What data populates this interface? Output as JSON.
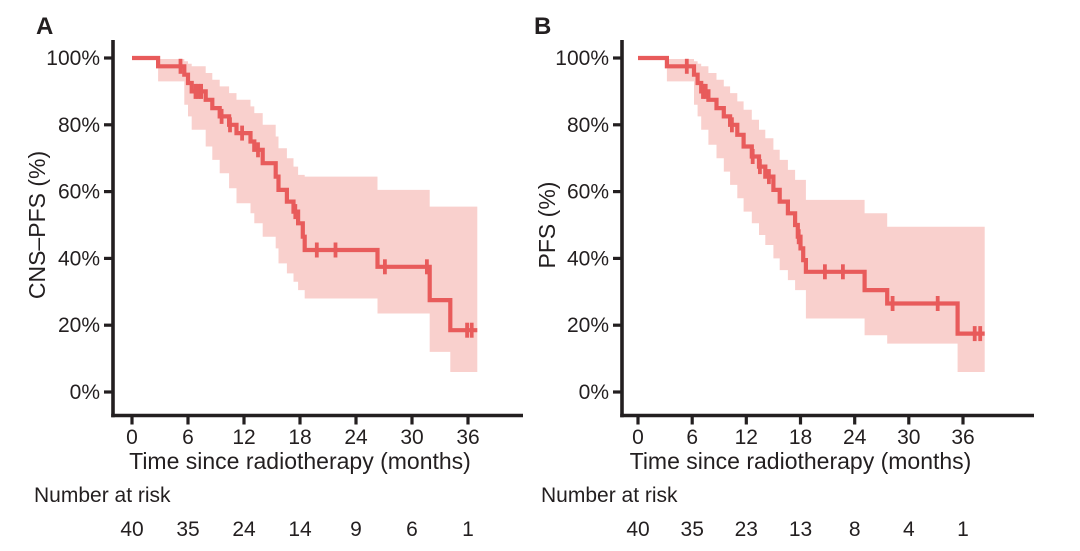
{
  "figure": {
    "background": "#ffffff",
    "colors": {
      "curve": "#e85b5b",
      "band": "#f9d0cd",
      "axis": "#231f20",
      "text": "#231f20"
    },
    "x_axis_label": "Time since radiotherapy (months)",
    "number_at_risk_label": "Number at risk",
    "x_ticks": [
      0,
      6,
      12,
      18,
      24,
      30,
      36
    ],
    "y_ticks": [
      {
        "value": 100,
        "label": "100%"
      },
      {
        "value": 80,
        "label": "80%"
      },
      {
        "value": 60,
        "label": "60%"
      },
      {
        "value": 40,
        "label": "40%"
      },
      {
        "value": 20,
        "label": "20%"
      },
      {
        "value": 0,
        "label": "0%"
      }
    ]
  },
  "chart_data": [
    {
      "type": "line",
      "subtype": "kaplan-meier-step",
      "panel_label": "A",
      "ylabel": "CNS–PFS (%)",
      "xlabel": "Time since radiotherapy (months)",
      "xlim": [
        0,
        42
      ],
      "ylim": [
        0,
        100
      ],
      "x_ticks": [
        0,
        6,
        12,
        18,
        24,
        30,
        36
      ],
      "y_tick_values": [
        0,
        20,
        40,
        60,
        80,
        100
      ],
      "grid": false,
      "legend": "none",
      "number_at_risk": [
        40,
        35,
        24,
        14,
        9,
        6,
        1
      ],
      "end_time": 37.0,
      "steps": [
        [
          0,
          100
        ],
        [
          2.8,
          97.5
        ],
        [
          5.6,
          95
        ],
        [
          6.0,
          92.5
        ],
        [
          6.4,
          90
        ],
        [
          7.9,
          87.5
        ],
        [
          8.6,
          85
        ],
        [
          9.4,
          82.5
        ],
        [
          10.4,
          80
        ],
        [
          11.2,
          77.5
        ],
        [
          12.7,
          75
        ],
        [
          13.1,
          72.5
        ],
        [
          14.0,
          68.5
        ],
        [
          15.4,
          64.5
        ],
        [
          15.7,
          60.5
        ],
        [
          16.6,
          57
        ],
        [
          17.3,
          54
        ],
        [
          17.8,
          50.5
        ],
        [
          18.3,
          46.5
        ],
        [
          18.5,
          42.5
        ],
        [
          26.3,
          37.5
        ],
        [
          31.9,
          27.5
        ],
        [
          34.1,
          18.5
        ]
      ],
      "censors": [
        [
          5.2,
          97.5
        ],
        [
          6.8,
          90
        ],
        [
          7.1,
          90
        ],
        [
          7.4,
          90
        ],
        [
          9.6,
          82.5
        ],
        [
          10.5,
          80
        ],
        [
          11.8,
          77.5
        ],
        [
          13.5,
          72.5
        ],
        [
          17.5,
          54
        ],
        [
          19.8,
          42.5
        ],
        [
          21.8,
          42.5
        ],
        [
          27.1,
          37.5
        ],
        [
          31.6,
          37.5
        ],
        [
          35.9,
          18.5
        ],
        [
          36.4,
          18.5
        ]
      ],
      "band": [
        [
          2.8,
          93,
          99.7
        ],
        [
          5.6,
          86,
          99
        ],
        [
          6.0,
          82.5,
          98.3
        ],
        [
          6.4,
          78.5,
          97.5
        ],
        [
          7.9,
          73.5,
          95.5
        ],
        [
          8.6,
          69.5,
          93.5
        ],
        [
          9.4,
          65.5,
          91.5
        ],
        [
          10.4,
          61,
          89.5
        ],
        [
          11.2,
          56.5,
          87.5
        ],
        [
          12.7,
          53.5,
          85.5
        ],
        [
          13.1,
          50.5,
          83.5
        ],
        [
          14.0,
          46.5,
          80
        ],
        [
          15.4,
          43,
          76.5
        ],
        [
          15.7,
          38.5,
          73
        ],
        [
          16.6,
          35.5,
          70
        ],
        [
          17.3,
          33,
          67.5
        ],
        [
          17.8,
          30.5,
          65
        ],
        [
          18.5,
          28,
          64.5
        ],
        [
          26.3,
          23.5,
          60.5
        ],
        [
          31.9,
          12,
          55.5
        ],
        [
          34.1,
          6,
          55.5
        ]
      ]
    },
    {
      "type": "line",
      "subtype": "kaplan-meier-step",
      "panel_label": "B",
      "ylabel": "PFS (%)",
      "xlabel": "Time since radiotherapy (months)",
      "xlim": [
        0,
        42
      ],
      "ylim": [
        0,
        100
      ],
      "x_ticks": [
        0,
        6,
        12,
        18,
        24,
        30,
        36
      ],
      "y_tick_values": [
        0,
        20,
        40,
        60,
        80,
        100
      ],
      "grid": false,
      "legend": "none",
      "number_at_risk": [
        40,
        35,
        23,
        13,
        8,
        4,
        1
      ],
      "end_time": 38.4,
      "steps": [
        [
          0,
          100
        ],
        [
          3.2,
          97.5
        ],
        [
          6.2,
          95
        ],
        [
          6.6,
          92.5
        ],
        [
          7.0,
          90
        ],
        [
          7.8,
          87.5
        ],
        [
          8.7,
          85
        ],
        [
          9.5,
          82.5
        ],
        [
          10.2,
          80
        ],
        [
          11.0,
          77
        ],
        [
          11.7,
          73.5
        ],
        [
          12.6,
          70.5
        ],
        [
          13.4,
          67.5
        ],
        [
          14.1,
          64.5
        ],
        [
          15.0,
          60.5
        ],
        [
          15.7,
          57
        ],
        [
          16.6,
          53.5
        ],
        [
          17.4,
          50
        ],
        [
          17.7,
          46.5
        ],
        [
          18.0,
          43
        ],
        [
          18.3,
          39.5
        ],
        [
          18.6,
          36
        ],
        [
          25.1,
          30.5
        ],
        [
          27.6,
          26.5
        ],
        [
          35.4,
          17.5
        ]
      ],
      "censors": [
        [
          5.4,
          97.5
        ],
        [
          7.2,
          90
        ],
        [
          7.5,
          90
        ],
        [
          10.4,
          80
        ],
        [
          12.7,
          70.5
        ],
        [
          13.5,
          67.5
        ],
        [
          14.5,
          64.5
        ],
        [
          17.8,
          46.5
        ],
        [
          20.7,
          36
        ],
        [
          22.7,
          36
        ],
        [
          28.2,
          26.5
        ],
        [
          33.2,
          26.5
        ],
        [
          37.3,
          17.5
        ],
        [
          37.9,
          17.5
        ]
      ],
      "band": [
        [
          3.2,
          93,
          99.7
        ],
        [
          6.2,
          86,
          99
        ],
        [
          6.6,
          82.5,
          98.3
        ],
        [
          7.0,
          78.5,
          97.5
        ],
        [
          7.8,
          74,
          95.5
        ],
        [
          8.7,
          70,
          93.5
        ],
        [
          9.5,
          66,
          91.5
        ],
        [
          10.2,
          62,
          89.5
        ],
        [
          11.0,
          58,
          87
        ],
        [
          11.7,
          54,
          84.5
        ],
        [
          12.6,
          50.5,
          81.5
        ],
        [
          13.4,
          47,
          78.5
        ],
        [
          14.1,
          44,
          76
        ],
        [
          15.0,
          40,
          72.5
        ],
        [
          15.7,
          36.5,
          69.5
        ],
        [
          16.6,
          33.5,
          66.5
        ],
        [
          17.4,
          30.5,
          63.5
        ],
        [
          18.6,
          22,
          57.5
        ],
        [
          25.1,
          17,
          53.5
        ],
        [
          27.6,
          14.5,
          49.5
        ],
        [
          35.4,
          6,
          49.5
        ]
      ]
    }
  ]
}
